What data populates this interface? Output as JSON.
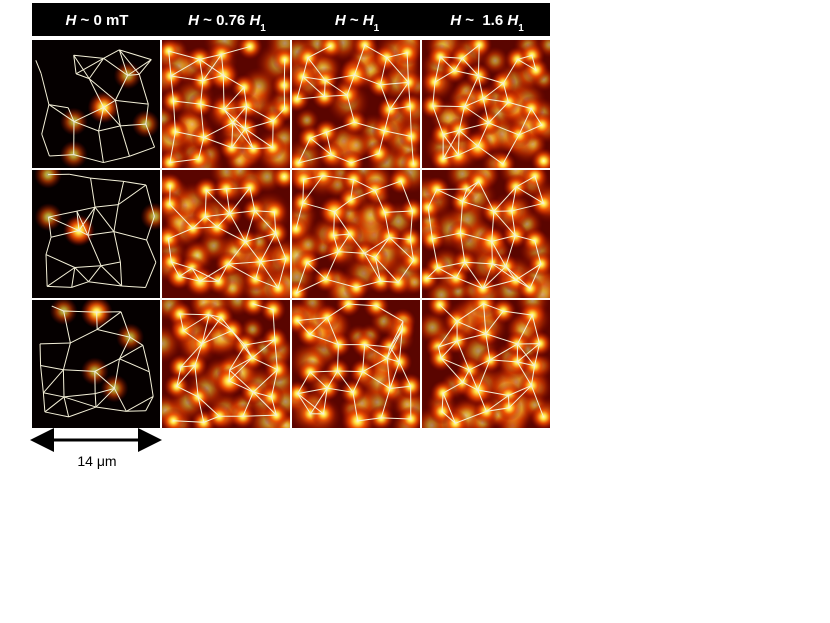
{
  "figure": {
    "headers": [
      [
        {
          "text": "H",
          "style": "italic"
        },
        {
          "text": " ~ 0 mT",
          "style": "normal"
        }
      ],
      [
        {
          "text": "H",
          "style": "italic"
        },
        {
          "text": " ~ 0.76 ",
          "style": "normal"
        },
        {
          "text": "H",
          "style": "italic"
        },
        {
          "text": "1",
          "style": "sub"
        }
      ],
      [
        {
          "text": "H",
          "style": "italic"
        },
        {
          "text": " ~ ",
          "style": "normal"
        },
        {
          "text": "H",
          "style": "italic"
        },
        {
          "text": "1",
          "style": "sub"
        }
      ],
      [
        {
          "text": "H",
          "style": "italic"
        },
        {
          "text": " ~  1.6 ",
          "style": "normal"
        },
        {
          "text": "H",
          "style": "italic"
        },
        {
          "text": "1",
          "style": "sub"
        }
      ]
    ],
    "scale_label": "14 μm"
  }
}
